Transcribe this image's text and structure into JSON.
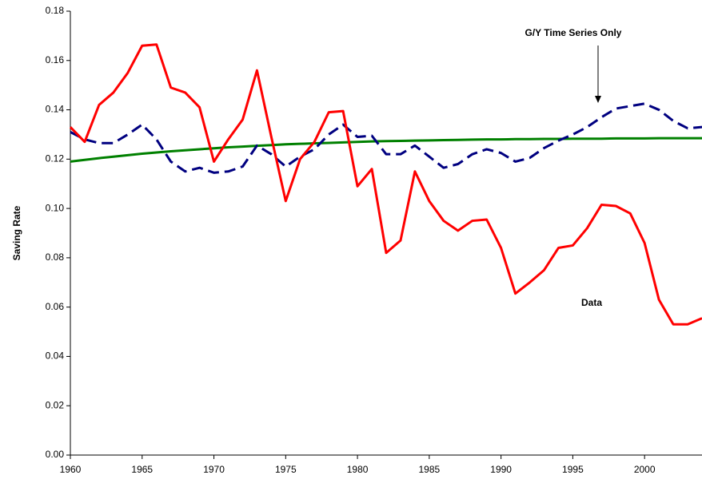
{
  "chart_data": {
    "type": "line",
    "y_label": "Saving Rate",
    "annotations": [
      "G/Y Time Series Only",
      "Data"
    ],
    "x": [
      1960,
      1961,
      1962,
      1963,
      1964,
      1965,
      1966,
      1967,
      1968,
      1969,
      1970,
      1971,
      1972,
      1973,
      1974,
      1975,
      1976,
      1977,
      1978,
      1979,
      1980,
      1981,
      1982,
      1983,
      1984,
      1985,
      1986,
      1987,
      1988,
      1989,
      1990,
      1991,
      1992,
      1993,
      1994,
      1995,
      1996,
      1997,
      1998,
      1999,
      2000,
      2001,
      2002,
      2003,
      2004
    ],
    "series": [
      {
        "color": "#ff0000",
        "dash": false,
        "values": [
          0.133,
          0.127,
          0.142,
          0.147,
          0.155,
          0.166,
          0.1665,
          0.149,
          0.147,
          0.141,
          0.119,
          0.128,
          0.136,
          0.156,
          0.129,
          0.103,
          0.12,
          0.127,
          0.139,
          0.1395,
          0.109,
          0.116,
          0.082,
          0.087,
          0.115,
          0.103,
          0.095,
          0.091,
          0.095,
          0.0955,
          0.084,
          0.0655,
          0.07,
          0.075,
          0.084,
          0.085,
          0.092,
          0.1015,
          0.101,
          0.098,
          0.086,
          0.063,
          0.053,
          0.053,
          0.0555
        ]
      },
      {
        "color": "#000080",
        "dash": true,
        "values": [
          0.131,
          0.128,
          0.1265,
          0.1265,
          0.13,
          0.134,
          0.128,
          0.119,
          0.115,
          0.1165,
          0.1145,
          0.115,
          0.117,
          0.1255,
          0.122,
          0.117,
          0.121,
          0.124,
          0.13,
          0.134,
          0.129,
          0.1295,
          0.122,
          0.122,
          0.1255,
          0.121,
          0.1165,
          0.118,
          0.122,
          0.124,
          0.1225,
          0.119,
          0.1205,
          0.1245,
          0.1275,
          0.13,
          0.133,
          0.137,
          0.1405,
          0.1415,
          0.1425,
          0.14,
          0.1355,
          0.1325,
          0.133
        ]
      },
      {
        "color": "#008000",
        "dash": false,
        "values": [
          0.119,
          0.1197,
          0.1204,
          0.121,
          0.1216,
          0.1222,
          0.1227,
          0.1232,
          0.1236,
          0.124,
          0.1244,
          0.1248,
          0.1251,
          0.1254,
          0.1257,
          0.126,
          0.1262,
          0.1264,
          0.1266,
          0.1268,
          0.127,
          0.1272,
          0.1273,
          0.1274,
          0.1275,
          0.1276,
          0.1277,
          0.1278,
          0.1279,
          0.128,
          0.128,
          0.1281,
          0.1281,
          0.1282,
          0.1282,
          0.1283,
          0.1283,
          0.1283,
          0.1284,
          0.1284,
          0.1284,
          0.1285,
          0.1285,
          0.1285,
          0.1285
        ]
      }
    ],
    "xlim": [
      1960,
      2004
    ],
    "xticks": [
      1960,
      1965,
      1970,
      1975,
      1980,
      1985,
      1990,
      1995,
      2000
    ],
    "ylim": [
      0,
      0.18
    ],
    "yticks": [
      {
        "value": 0,
        "label": "0.00"
      },
      {
        "value": 0.02,
        "label": "0.02"
      },
      {
        "value": 0.04,
        "label": "0.04"
      },
      {
        "value": 0.06,
        "label": "0.06"
      },
      {
        "value": 0.08,
        "label": "0.08"
      },
      {
        "value": 0.1,
        "label": "0.10"
      },
      {
        "value": 0.12,
        "label": "0.12"
      },
      {
        "value": 0.14,
        "label": "0.14"
      },
      {
        "value": 0.16,
        "label": "0.16"
      },
      {
        "value": 0.18,
        "label": "0.18"
      }
    ],
    "grid": false
  }
}
